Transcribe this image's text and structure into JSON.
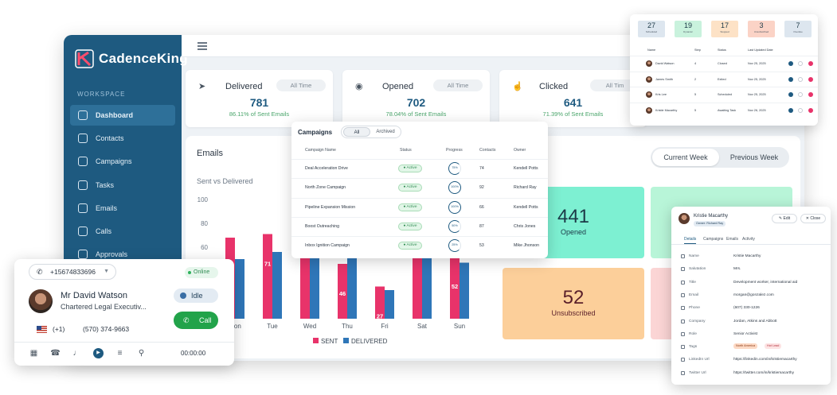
{
  "app": {
    "logo_text": "CadenceKing",
    "workspace_label": "WORKSPACE",
    "nav": [
      {
        "label": "Dashboard",
        "icon": "pie-chart-icon",
        "active": true
      },
      {
        "label": "Contacts",
        "icon": "users-icon",
        "active": false
      },
      {
        "label": "Campaigns",
        "icon": "copy-icon",
        "active": false
      },
      {
        "label": "Tasks",
        "icon": "list-check-icon",
        "active": false
      },
      {
        "label": "Emails",
        "icon": "lines-icon",
        "active": false
      },
      {
        "label": "Calls",
        "icon": "phone-icon",
        "active": false
      },
      {
        "label": "Approvals",
        "icon": "check-icon",
        "active": false
      }
    ]
  },
  "stats": [
    {
      "title": "Delivered",
      "icon": "send-icon",
      "range": "All Time",
      "value": "781",
      "sub": "86.11% of Sent Emails"
    },
    {
      "title": "Opened",
      "icon": "eye-icon",
      "range": "All Time",
      "value": "702",
      "sub": "78.04% of Sent Emails"
    },
    {
      "title": "Clicked",
      "icon": "click-icon",
      "range": "All Tim",
      "value": "641",
      "sub": "71.39% of Sent Emails"
    }
  ],
  "emails": {
    "title": "Emails",
    "week_toggle": {
      "current": "Current Week",
      "previous": "Previous Week"
    },
    "tiles": [
      {
        "value": "441",
        "label": "Opened",
        "color": "#7df0d2"
      },
      {
        "value": "52",
        "label": "Unsubscribed",
        "color": "#fccf9a"
      }
    ]
  },
  "chart_data": {
    "type": "bar",
    "title": "Sent vs Delivered",
    "categories": [
      "Mon",
      "Tue",
      "Wed",
      "Thu",
      "Fri",
      "Sat",
      "Sun"
    ],
    "series": [
      {
        "name": "SENT",
        "color": "#e8336a",
        "values": [
          68,
          71,
          83,
          46,
          27,
          75,
          52
        ]
      },
      {
        "name": "DELIVERED",
        "color": "#2f76b8",
        "values": [
          50,
          56,
          70,
          60,
          24,
          78,
          47
        ]
      }
    ],
    "data_labels": {
      "1": "71",
      "2": "83",
      "3": "46",
      "4": "27",
      "6": "52"
    },
    "y_ticks": [
      "100",
      "80",
      "60"
    ],
    "ylim": [
      0,
      100
    ],
    "legend": "bottom"
  },
  "dialer": {
    "phone": "+15674833696",
    "status": "Online",
    "name": "Mr David Watson",
    "role": "Chartered Legal Executiv...",
    "availability": "Idle",
    "country_code": "(+1)",
    "number": "(570) 374-9663",
    "call_label": "Call",
    "timer": "00:00:00",
    "tools": [
      "calculator-icon",
      "hangup-icon",
      "mic-icon",
      "play-icon",
      "notes-icon",
      "location-icon"
    ]
  },
  "campaigns": {
    "title": "Campaigns",
    "tabs": [
      "All",
      "Archived"
    ],
    "columns": [
      "Campaign Name",
      "Status",
      "Progress",
      "Contacts",
      "Owner"
    ],
    "rows": [
      {
        "name": "Deal Acceleration Drive",
        "status": "Active",
        "progress": "75%",
        "contacts": "74",
        "owner": "Kendell Potts"
      },
      {
        "name": "North Zone Campaign",
        "status": "Active",
        "progress": "100%",
        "contacts": "92",
        "owner": "Richard Ray"
      },
      {
        "name": "Pipeline Expansion Mission",
        "status": "Active",
        "progress": "100%",
        "contacts": "66",
        "owner": "Kendell Potts"
      },
      {
        "name": "Boost Outreaching",
        "status": "Active",
        "progress": "50%",
        "contacts": "87",
        "owner": "Chris Jones"
      },
      {
        "name": "Inbox Ignition Campaign",
        "status": "Active",
        "progress": "25%",
        "contacts": "53",
        "owner": "Mike Jhonson"
      }
    ]
  },
  "contacts_table": {
    "kpis": [
      {
        "value": "27",
        "label": "Scheduled",
        "color": "#dde6ef"
      },
      {
        "value": "19",
        "label": "Dynamic",
        "color": "#c9f2dd"
      },
      {
        "value": "17",
        "label": "Stopped",
        "color": "#fde2c6"
      },
      {
        "value": "3",
        "label": "Unsubscribed",
        "color": "#fbd3c6"
      },
      {
        "value": "7",
        "label": "Overdue",
        "color": "#dde6ef"
      }
    ],
    "columns": [
      "Name",
      "Step",
      "Status",
      "Last Updated Date"
    ],
    "rows": [
      {
        "name": "David Watson",
        "step": "4",
        "status": "Closed",
        "date": "Nov 25, 2025"
      },
      {
        "name": "James Smith",
        "step": "2",
        "status": "Exited",
        "date": "Nov 25, 2025"
      },
      {
        "name": "Kris Lee",
        "step": "5",
        "status": "Scheduled",
        "date": "Nov 25, 2025"
      },
      {
        "name": "Kristie Macarthy",
        "step": "5",
        "status": "Awaiting Task",
        "date": "Nov 26, 2025"
      }
    ]
  },
  "contact_detail": {
    "name": "Kristie Macarthy",
    "owner_badge": "Owner: Richard Ray",
    "edit_label": "Edit",
    "close_label": "Close",
    "tabs": [
      "Details",
      "Campaigns",
      "Emails",
      "Activity"
    ],
    "fields": [
      {
        "label": "Name",
        "value": "Kristie Macarthy"
      },
      {
        "label": "Salutation",
        "value": "Mrs."
      },
      {
        "label": "Title",
        "value": "Development worker, international aid"
      },
      {
        "label": "Email",
        "value": "morgan@gonzalez.com"
      },
      {
        "label": "Phone",
        "value": "(607) 330-1226"
      },
      {
        "label": "Company",
        "value": "Jordan, Atkins and Abbott"
      },
      {
        "label": "Role",
        "value": "Senior Activist"
      },
      {
        "label": "Tags",
        "value": ""
      },
      {
        "label": "LinkedIn Url",
        "value": "https://linkedin.com/in/kristiemacarthy"
      },
      {
        "label": "Twitter Url",
        "value": "https://twitter.com/in/kristiemacarthy"
      }
    ],
    "tags": [
      {
        "label": "North America",
        "color": "#fdd9c4"
      },
      {
        "label": "Hot Lead",
        "color": "#fde3e3"
      }
    ]
  }
}
